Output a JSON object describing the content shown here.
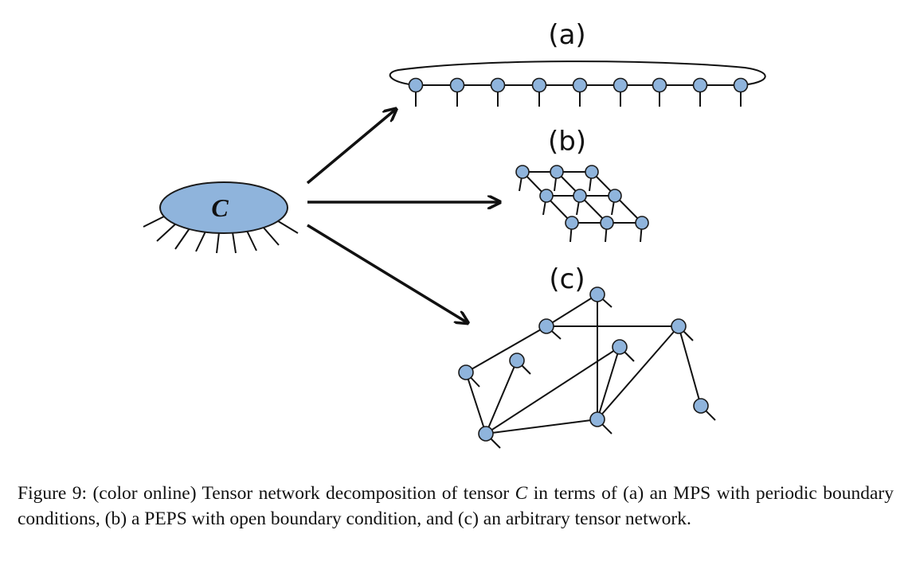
{
  "figure": {
    "panel_a_label": "(a)",
    "panel_b_label": "(b)",
    "panel_c_label": "(c)",
    "tensor_label": "C"
  },
  "caption": {
    "part1": "Figure 9: (color online) Tensor network decomposition of tensor ",
    "math": "C",
    "part2": " in terms of (a) an MPS with periodic boundary conditions, (b) a PEPS with open boundary condition, and (c) an arbitrary tensor network."
  },
  "colors": {
    "node_fill": "#8fb4dc",
    "ellipse_fill": "#8fb4dc",
    "stroke": "#111111"
  }
}
